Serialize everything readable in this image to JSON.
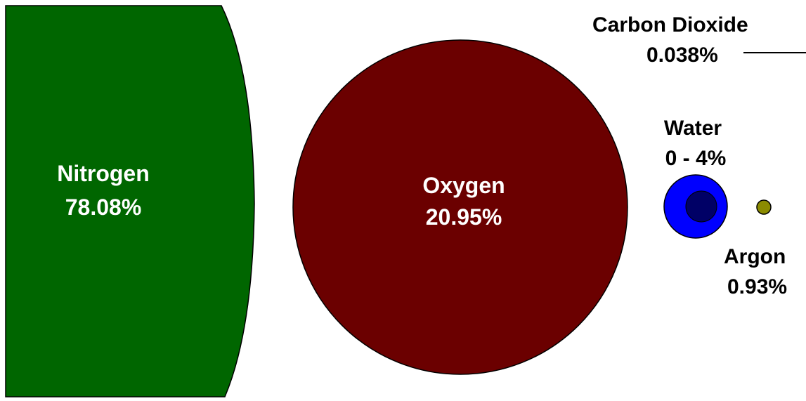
{
  "chart_data": {
    "type": "bubble",
    "items": [
      {
        "name": "Nitrogen",
        "value": "78.08%",
        "color": "#006600"
      },
      {
        "name": "Oxygen",
        "value": "20.95%",
        "color": "#6b0000"
      },
      {
        "name": "Water",
        "value": "0 - 4%",
        "color": "#0000ff",
        "inner_color": "#000066"
      },
      {
        "name": "Argon",
        "value": "0.93%",
        "color": "#8b8b00"
      },
      {
        "name": "Carbon Dioxide",
        "value": "0.038%",
        "color": "#000000"
      }
    ]
  },
  "colors": {
    "outline": "#000000",
    "label_light": "#ffffff",
    "label_dark": "#000000"
  }
}
